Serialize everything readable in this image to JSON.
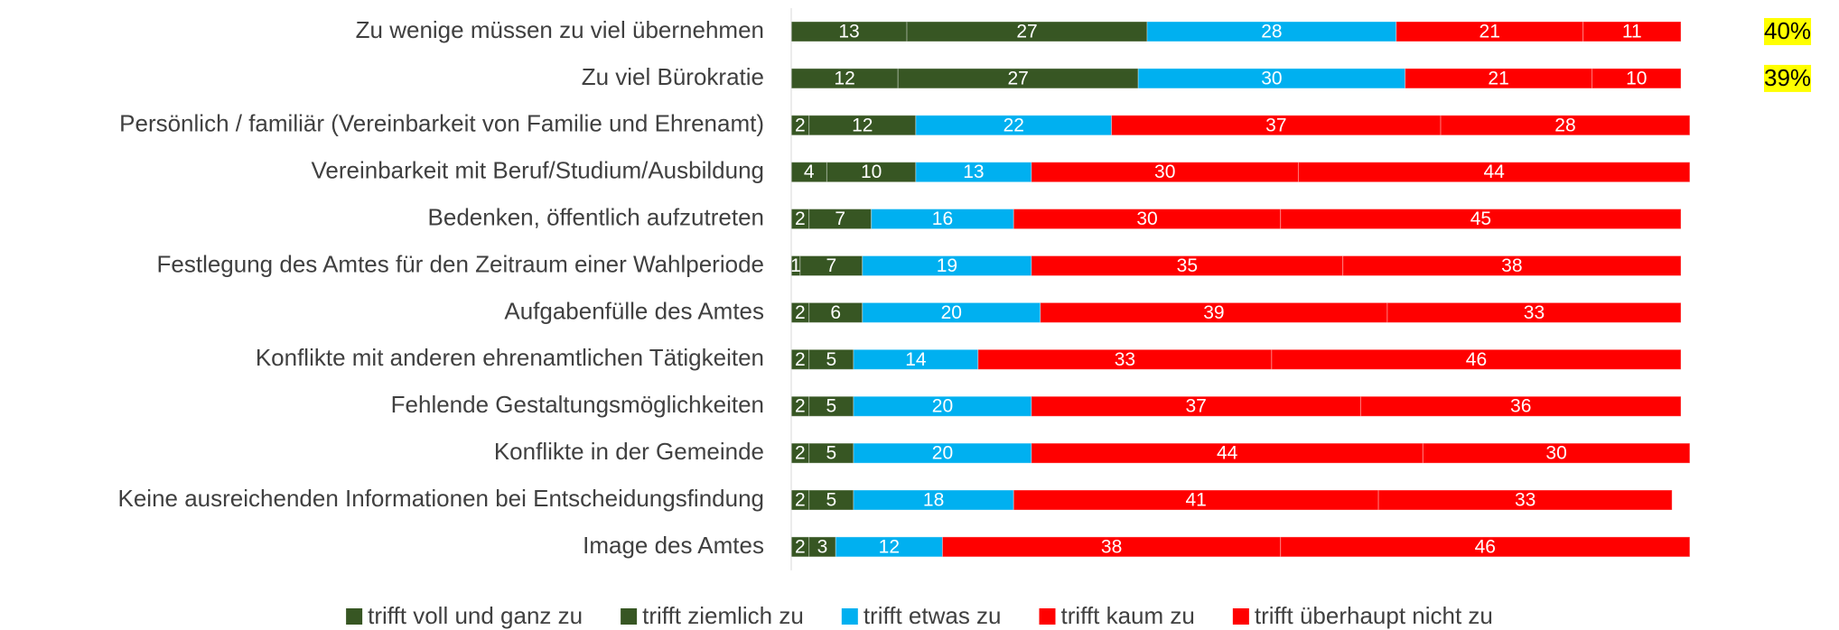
{
  "chart_data": {
    "type": "stacked-bar-horizontal",
    "categories": [
      "Zu wenige müssen zu viel übernehmen",
      "Zu viel Bürokratie",
      "Persönlich / familiär (Vereinbarkeit von Familie und Ehrenamt)",
      "Vereinbarkeit mit Beruf/Studium/Ausbildung",
      "Bedenken, öffentlich aufzutreten",
      "Festlegung des Amtes für den Zeitraum einer Wahlperiode",
      "Aufgabenfülle des Amtes",
      "Konflikte mit anderen ehrenamtlichen Tätigkeiten",
      "Fehlende Gestaltungsmöglichkeiten",
      "Konflikte in der Gemeinde",
      "Keine ausreichenden Informationen bei Entscheidungsfindung",
      "Image des Amtes"
    ],
    "series": [
      {
        "name": "trifft voll und ganz zu",
        "color": "#375623",
        "values": [
          13,
          12,
          2,
          4,
          2,
          1,
          2,
          2,
          2,
          2,
          2,
          2
        ]
      },
      {
        "name": "trifft ziemlich zu",
        "color": "#375623",
        "values": [
          27,
          27,
          12,
          10,
          7,
          7,
          6,
          5,
          5,
          5,
          5,
          3
        ]
      },
      {
        "name": "trifft etwas zu",
        "color": "#00b0f0",
        "values": [
          28,
          30,
          22,
          13,
          16,
          19,
          20,
          14,
          20,
          20,
          18,
          12
        ]
      },
      {
        "name": "trifft kaum zu",
        "color": "#ff0000",
        "values": [
          21,
          21,
          37,
          30,
          30,
          35,
          39,
          33,
          37,
          44,
          41,
          38
        ]
      },
      {
        "name": "trifft überhaupt nicht zu",
        "color": "#ff0000",
        "values": [
          11,
          10,
          28,
          44,
          45,
          38,
          33,
          46,
          36,
          30,
          33,
          46
        ]
      }
    ],
    "xlim": [
      0,
      100
    ],
    "annotations": [
      "40%",
      "39%"
    ],
    "annotation_color": "#ffff00",
    "legend": "bottom"
  }
}
